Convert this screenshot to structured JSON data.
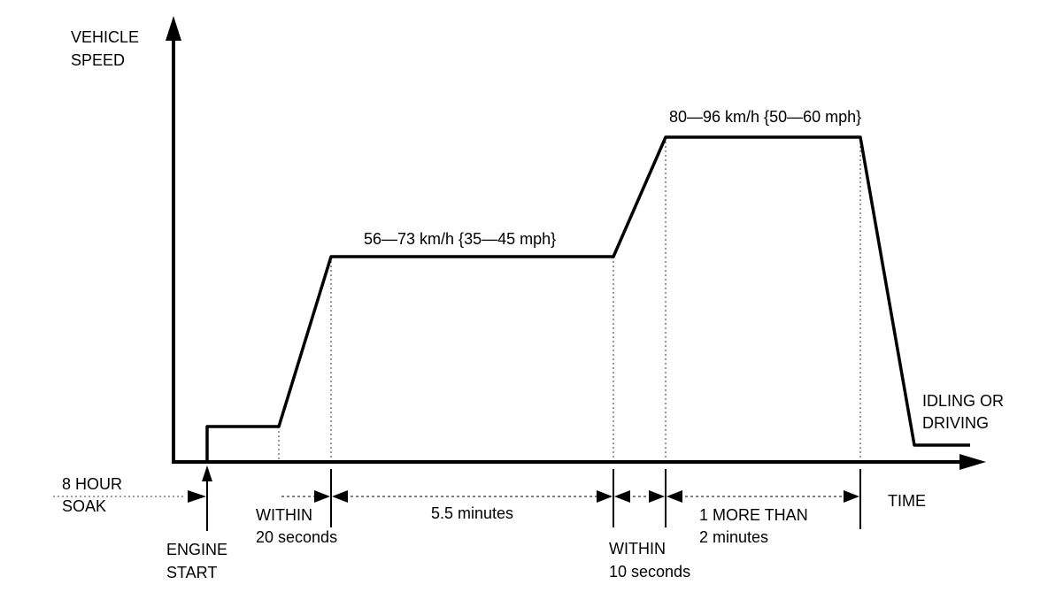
{
  "axes": {
    "y_label_line1": "VEHICLE",
    "y_label_line2": "SPEED",
    "x_label": "TIME"
  },
  "speed_ranges": {
    "cruise": "56—73 km/h {35—45 mph}",
    "high": "80—96 km/h {50—60 mph}"
  },
  "end_state": {
    "line1": "IDLING OR",
    "line2": "DRIVING"
  },
  "timeline": {
    "soak_line1": "8 HOUR",
    "soak_line2": "SOAK",
    "engine_line1": "ENGINE",
    "engine_line2": "START",
    "within20_line1": "WITHIN",
    "within20_line2": "20  seconds",
    "cruise_duration": "5.5 minutes",
    "within10_line1": "WITHIN",
    "within10_line2": "10 seconds",
    "hold_line1": "1 MORE THAN",
    "hold_line2": "2 minutes"
  }
}
